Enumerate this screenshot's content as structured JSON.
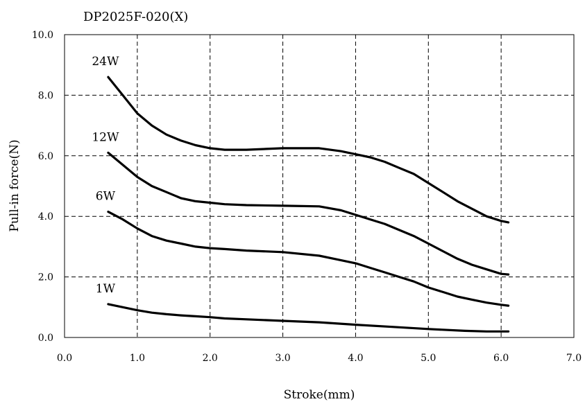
{
  "chart_data": {
    "type": "line",
    "title": "DP2025F-020(X)",
    "xlabel": "Stroke(mm)",
    "ylabel": "Pull-in force(N)",
    "xlim": [
      0,
      7
    ],
    "ylim": [
      0,
      10
    ],
    "grid": true,
    "x_ticks": [
      "0.0",
      "1.0",
      "2.0",
      "3.0",
      "4.0",
      "5.0",
      "6.0",
      "7.0"
    ],
    "y_ticks": [
      "0.0",
      "2.0",
      "4.0",
      "6.0",
      "8.0",
      "10.0"
    ],
    "series": [
      {
        "name": "24W",
        "x": [
          0.6,
          0.8,
          1.0,
          1.2,
          1.4,
          1.6,
          1.8,
          2.0,
          2.2,
          2.5,
          3.0,
          3.5,
          3.8,
          4.0,
          4.2,
          4.4,
          4.6,
          4.8,
          5.0,
          5.2,
          5.4,
          5.6,
          5.8,
          6.0,
          6.1
        ],
        "y": [
          8.6,
          8.0,
          7.4,
          7.0,
          6.7,
          6.5,
          6.35,
          6.25,
          6.2,
          6.2,
          6.25,
          6.25,
          6.15,
          6.05,
          5.95,
          5.8,
          5.6,
          5.4,
          5.1,
          4.8,
          4.5,
          4.25,
          4.0,
          3.85,
          3.8
        ]
      },
      {
        "name": "12W",
        "x": [
          0.6,
          0.8,
          1.0,
          1.2,
          1.4,
          1.6,
          1.8,
          2.0,
          2.2,
          2.5,
          3.0,
          3.5,
          3.8,
          4.0,
          4.2,
          4.4,
          4.6,
          4.8,
          5.0,
          5.2,
          5.4,
          5.6,
          5.8,
          6.0,
          6.1
        ],
        "y": [
          6.1,
          5.7,
          5.3,
          5.0,
          4.8,
          4.6,
          4.5,
          4.45,
          4.4,
          4.37,
          4.35,
          4.33,
          4.2,
          4.05,
          3.9,
          3.75,
          3.55,
          3.35,
          3.1,
          2.85,
          2.6,
          2.4,
          2.25,
          2.1,
          2.08
        ]
      },
      {
        "name": "6W",
        "x": [
          0.6,
          0.8,
          1.0,
          1.2,
          1.4,
          1.6,
          1.8,
          2.0,
          2.2,
          2.5,
          3.0,
          3.5,
          3.8,
          4.0,
          4.2,
          4.4,
          4.6,
          4.8,
          5.0,
          5.2,
          5.4,
          5.6,
          5.8,
          6.0,
          6.1
        ],
        "y": [
          4.15,
          3.9,
          3.6,
          3.35,
          3.2,
          3.1,
          3.0,
          2.95,
          2.92,
          2.87,
          2.82,
          2.7,
          2.55,
          2.45,
          2.3,
          2.15,
          2.0,
          1.85,
          1.65,
          1.5,
          1.35,
          1.25,
          1.15,
          1.08,
          1.05
        ]
      },
      {
        "name": "1W",
        "x": [
          0.6,
          0.8,
          1.0,
          1.2,
          1.4,
          1.6,
          1.8,
          2.0,
          2.2,
          2.5,
          3.0,
          3.5,
          4.0,
          4.5,
          5.0,
          5.5,
          5.8,
          6.0,
          6.1
        ],
        "y": [
          1.1,
          1.0,
          0.9,
          0.82,
          0.77,
          0.73,
          0.7,
          0.67,
          0.63,
          0.6,
          0.55,
          0.5,
          0.42,
          0.35,
          0.28,
          0.22,
          0.2,
          0.2,
          0.2
        ]
      }
    ]
  }
}
